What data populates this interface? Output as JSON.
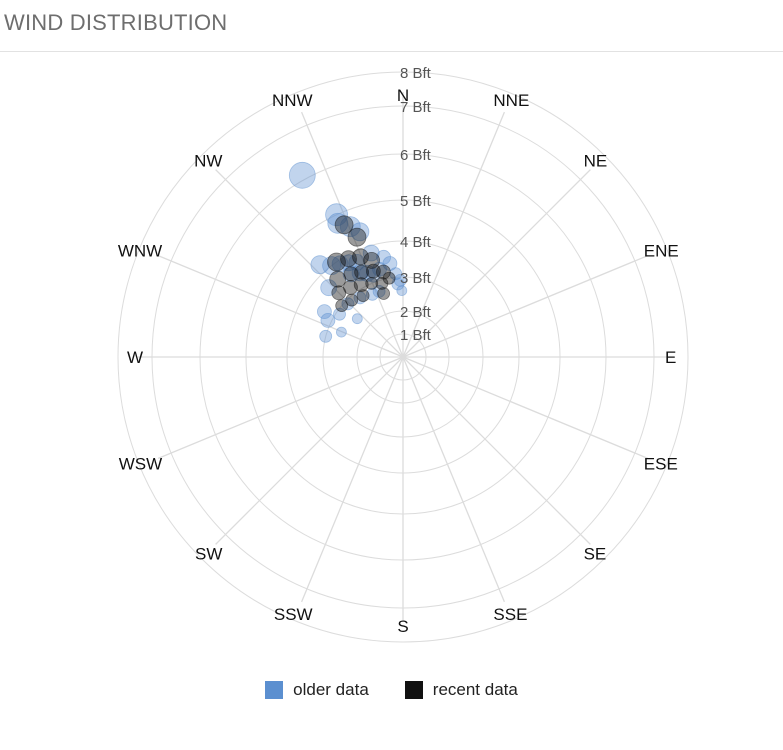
{
  "header": {
    "title": "WIND DISTRIBUTION"
  },
  "chart_data": {
    "type": "scatter",
    "title": "",
    "projection": "polar",
    "directions": [
      "N",
      "NNE",
      "NE",
      "ENE",
      "E",
      "ESE",
      "SE",
      "SSE",
      "S",
      "SSW",
      "SW",
      "WSW",
      "W",
      "WNW",
      "NW",
      "NNW"
    ],
    "radial_ticks": [
      "1 Bft",
      "2 Bft",
      "3 Bft",
      "4 Bft",
      "5 Bft",
      "6 Bft",
      "7 Bft",
      "8 Bft"
    ],
    "radial_range": [
      0,
      8
    ],
    "grid": true,
    "colors": {
      "older": "#5b8fd0",
      "recent": "#111111",
      "grid": "#dcdcdc"
    },
    "series": [
      {
        "name": "older data",
        "color": "#5b8fd0",
        "points": [
          {
            "dir": 331,
            "bft": 6.1,
            "size": 13
          },
          {
            "dir": 335,
            "bft": 5.0,
            "size": 11
          },
          {
            "dir": 334,
            "bft": 4.8,
            "size": 10
          },
          {
            "dir": 338,
            "bft": 4.6,
            "size": 10
          },
          {
            "dir": 341,
            "bft": 4.4,
            "size": 9
          },
          {
            "dir": 318,
            "bft": 4.2,
            "size": 9
          },
          {
            "dir": 322,
            "bft": 4.0,
            "size": 9
          },
          {
            "dir": 326,
            "bft": 3.9,
            "size": 8
          },
          {
            "dir": 330,
            "bft": 3.8,
            "size": 8
          },
          {
            "dir": 334,
            "bft": 3.7,
            "size": 8
          },
          {
            "dir": 343,
            "bft": 3.8,
            "size": 8
          },
          {
            "dir": 349,
            "bft": 3.6,
            "size": 7
          },
          {
            "dir": 352,
            "bft": 3.4,
            "size": 7
          },
          {
            "dir": 355,
            "bft": 3.1,
            "size": 6
          },
          {
            "dir": 358,
            "bft": 2.9,
            "size": 6
          },
          {
            "dir": 356,
            "bft": 2.8,
            "size": 6
          },
          {
            "dir": 359,
            "bft": 2.6,
            "size": 5
          },
          {
            "dir": 328,
            "bft": 3.5,
            "size": 8
          },
          {
            "dir": 333,
            "bft": 3.4,
            "size": 8
          },
          {
            "dir": 337,
            "bft": 3.3,
            "size": 8
          },
          {
            "dir": 340,
            "bft": 3.2,
            "size": 7
          },
          {
            "dir": 345,
            "bft": 3.3,
            "size": 7
          },
          {
            "dir": 313,
            "bft": 3.6,
            "size": 8
          },
          {
            "dir": 300,
            "bft": 3.3,
            "size": 7
          },
          {
            "dir": 296,
            "bft": 3.1,
            "size": 7
          },
          {
            "dir": 304,
            "bft": 2.9,
            "size": 6
          },
          {
            "dir": 314,
            "bft": 2.9,
            "size": 6
          },
          {
            "dir": 324,
            "bft": 2.8,
            "size": 6
          },
          {
            "dir": 334,
            "bft": 2.7,
            "size": 6
          },
          {
            "dir": 340,
            "bft": 2.7,
            "size": 6
          },
          {
            "dir": 285,
            "bft": 3.0,
            "size": 6
          },
          {
            "dir": 292,
            "bft": 2.6,
            "size": 5
          },
          {
            "dir": 310,
            "bft": 2.4,
            "size": 5
          }
        ]
      },
      {
        "name": "recent data",
        "color": "#111111",
        "points": [
          {
            "dir": 336,
            "bft": 4.7,
            "size": 9
          },
          {
            "dir": 339,
            "bft": 4.3,
            "size": 9
          },
          {
            "dir": 325,
            "bft": 4.0,
            "size": 9
          },
          {
            "dir": 331,
            "bft": 3.9,
            "size": 8
          },
          {
            "dir": 337,
            "bft": 3.8,
            "size": 8
          },
          {
            "dir": 342,
            "bft": 3.6,
            "size": 8
          },
          {
            "dir": 320,
            "bft": 3.6,
            "size": 8
          },
          {
            "dir": 328,
            "bft": 3.5,
            "size": 7
          },
          {
            "dir": 334,
            "bft": 3.4,
            "size": 7
          },
          {
            "dir": 341,
            "bft": 3.3,
            "size": 7
          },
          {
            "dir": 347,
            "bft": 3.2,
            "size": 7
          },
          {
            "dir": 315,
            "bft": 3.3,
            "size": 7
          },
          {
            "dir": 323,
            "bft": 3.2,
            "size": 7
          },
          {
            "dir": 330,
            "bft": 3.1,
            "size": 7
          },
          {
            "dir": 337,
            "bft": 3.0,
            "size": 6
          },
          {
            "dir": 344,
            "bft": 2.9,
            "size": 6
          },
          {
            "dir": 350,
            "bft": 3.0,
            "size": 6
          },
          {
            "dir": 327,
            "bft": 2.8,
            "size": 6
          },
          {
            "dir": 343,
            "bft": 2.6,
            "size": 6
          },
          {
            "dir": 318,
            "bft": 2.9,
            "size": 6
          },
          {
            "dir": 310,
            "bft": 3.0,
            "size": 6
          }
        ]
      }
    ],
    "legend": {
      "position": "bottom",
      "items": [
        {
          "label": "older data",
          "color": "#5b8fd0"
        },
        {
          "label": "recent data",
          "color": "#111111"
        }
      ]
    }
  }
}
